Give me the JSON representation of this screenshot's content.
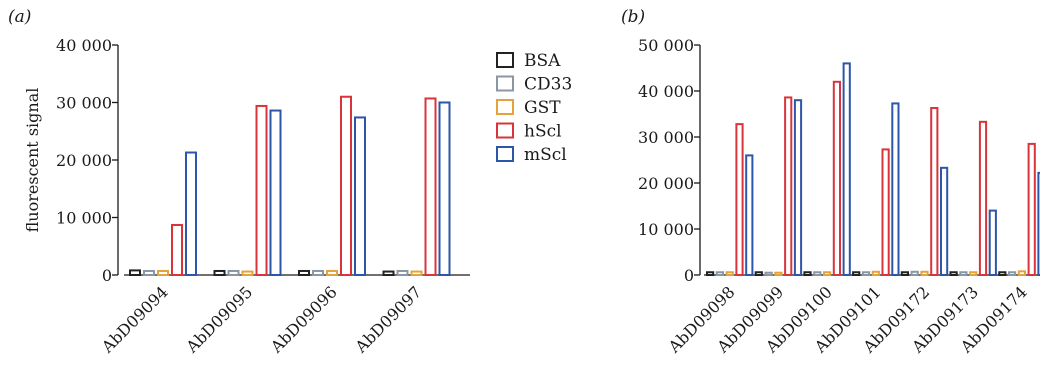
{
  "series_colors": {
    "BSA": "#222222",
    "CD33": "#8a97a3",
    "GST": "#e3a23a",
    "hScl": "#d8343a",
    "mScl": "#2d55a8"
  },
  "legend": [
    "BSA",
    "CD33",
    "GST",
    "hScl",
    "mScl"
  ],
  "chart_data": [
    {
      "type": "bar",
      "panel": "(a)",
      "ylabel": "fluorescent signal",
      "xlabel": "",
      "ylim": [
        0,
        40000
      ],
      "yticks": [
        0,
        10000,
        20000,
        30000,
        40000
      ],
      "ytick_labels": [
        "0",
        "10 000",
        "20 000",
        "30 000",
        "40 000"
      ],
      "grid": false,
      "legend_placement": "right",
      "categories": [
        "AbD09094",
        "AbD09095",
        "AbD09096",
        "AbD09097"
      ],
      "series": [
        {
          "name": "BSA",
          "values": [
            800,
            700,
            700,
            600
          ]
        },
        {
          "name": "CD33",
          "values": [
            700,
            700,
            700,
            700
          ]
        },
        {
          "name": "GST",
          "values": [
            700,
            600,
            700,
            600
          ]
        },
        {
          "name": "hScl",
          "values": [
            8700,
            29400,
            31000,
            30700
          ]
        },
        {
          "name": "mScl",
          "values": [
            21300,
            28600,
            27400,
            30000
          ]
        }
      ]
    },
    {
      "type": "bar",
      "panel": "(b)",
      "ylabel": "",
      "xlabel": "",
      "ylim": [
        0,
        50000
      ],
      "yticks": [
        0,
        10000,
        20000,
        30000,
        40000,
        50000
      ],
      "ytick_labels": [
        "0",
        "10 000",
        "20 000",
        "30 000",
        "40 000",
        "50 000"
      ],
      "grid": false,
      "categories": [
        "AbD09098",
        "AbD09099",
        "AbD09100",
        "AbD09101",
        "AbD09172",
        "AbD09173",
        "AbD09174"
      ],
      "series": [
        {
          "name": "BSA",
          "values": [
            600,
            600,
            600,
            600,
            600,
            600,
            600
          ]
        },
        {
          "name": "CD33",
          "values": [
            600,
            500,
            600,
            600,
            700,
            600,
            600
          ]
        },
        {
          "name": "GST",
          "values": [
            600,
            500,
            600,
            700,
            700,
            600,
            800
          ]
        },
        {
          "name": "hScl",
          "values": [
            32800,
            38600,
            42000,
            27300,
            36300,
            33300,
            28500
          ]
        },
        {
          "name": "mScl",
          "values": [
            26000,
            38000,
            46000,
            37300,
            23300,
            14000,
            22200
          ]
        }
      ]
    }
  ]
}
